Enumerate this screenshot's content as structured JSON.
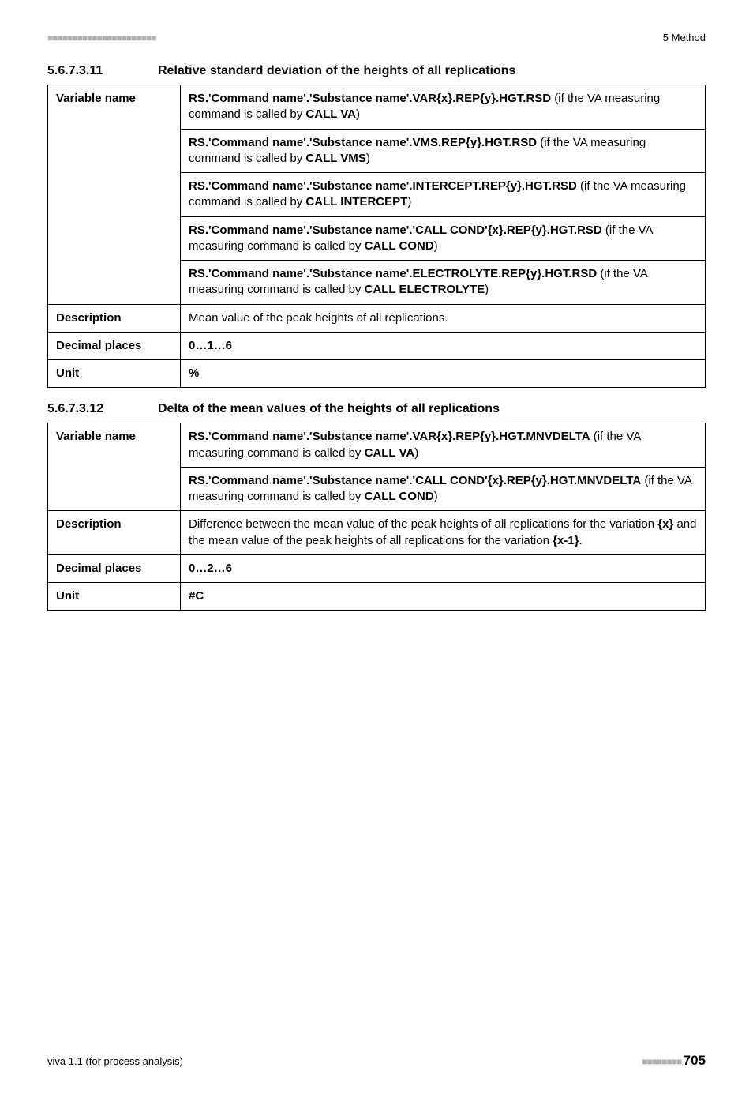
{
  "header": {
    "dashes": "■■■■■■■■■■■■■■■■■■■■■■",
    "right": "5 Method"
  },
  "section1": {
    "num": "5.6.7.3.11",
    "title": "Relative standard deviation of the heights of all replications",
    "varname_label": "Variable name",
    "blocks": [
      {
        "bold": "RS.'Command name'.'Substance name'.VAR{x}.REP{y}.HGT.RSD",
        "plain": " (if the VA measuring command is called by ",
        "bold2": "CALL VA",
        "plain2": ")"
      },
      {
        "bold": "RS.'Command name'.'Substance name'.VMS.REP{y}.HGT.RSD",
        "plain": " (if the VA measuring command is called by ",
        "bold2": "CALL VMS",
        "plain2": ")"
      },
      {
        "bold": "RS.'Command name'.'Substance name'.INTERCEPT.REP{y}.HGT.RSD",
        "plain": " (if the VA measuring command is called by ",
        "bold2": "CALL INTERCEPT",
        "plain2": ")"
      },
      {
        "bold": "RS.'Command name'.'Substance name'.'CALL COND'{x}.REP{y}.HGT.RSD",
        "plain": " (if the VA measuring command is called by ",
        "bold2": "CALL COND",
        "plain2": ")"
      },
      {
        "bold": "RS.'Command name'.'Substance name'.ELECTROLYTE.REP{y}.HGT.RSD",
        "plain": " (if the VA measuring command is called by ",
        "bold2": "CALL ELECTROLYTE",
        "plain2": ")"
      }
    ],
    "desc_label": "Description",
    "desc_val": "Mean value of the peak heights of all replications.",
    "dec_label": "Decimal places",
    "dec_val": "0…1…6",
    "unit_label": "Unit",
    "unit_val": "%"
  },
  "section2": {
    "num": "5.6.7.3.12",
    "title": "Delta of the mean values of the heights of all replications",
    "varname_label": "Variable name",
    "block1_bold1": "RS.'Command name'.'Substance name'.VAR{x}.REP{y}.HGT.MNVDELTA",
    "block1_plain1": " (if the VA measuring command is called by ",
    "block1_bold2": "CALL VA",
    "block1_plain2": ")",
    "block2_bold1": "RS.'Command name'.'Substance name'.'CALL COND'{x}.REP{y}.HGT.MNVDELTA",
    "block2_plain1": " (if the VA measuring command is ",
    "block2_plain1b": "called by ",
    "block2_bold2": "CALL COND",
    "block2_plain2": ")",
    "desc_label": "Description",
    "desc_val_a": "Difference between the mean value of the peak heights of all replications for the variation ",
    "desc_val_b": "{x}",
    "desc_val_c": " and the mean value of the peak heights of all replications for the variation ",
    "desc_val_d": "{x-1}",
    "desc_val_e": ".",
    "dec_label": "Decimal places",
    "dec_val": "0…2…6",
    "unit_label": "Unit",
    "unit_val": "#C"
  },
  "footer": {
    "left": "viva 1.1 (for process analysis)",
    "dashes": "■■■■■■■■ ",
    "page": "705"
  }
}
